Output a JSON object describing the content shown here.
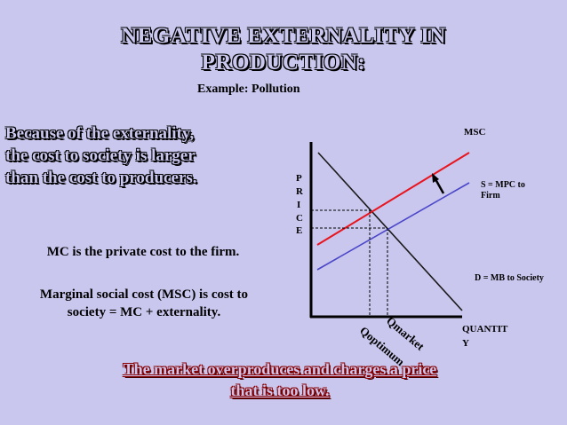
{
  "slide": {
    "title_line1": "NEGATIVE EXTERNALITY IN",
    "title_line2": "PRODUCTION:",
    "example": "Example:  Pollution",
    "cost_text_line1": "Because of the externality,",
    "cost_text_line2": "the cost to society is larger",
    "cost_text_line3": "than the cost to producers.",
    "mc_text": "MC is the private cost to the firm.",
    "msc_text": "Marginal social cost (MSC) is cost to society = MC + externality.",
    "conclusion_line1": "The market overproduces and charges a price",
    "conclusion_line2": "that is too low."
  },
  "diagram": {
    "y_axis_label_letters": [
      "P",
      "R",
      "I",
      "C",
      "E"
    ],
    "x_axis_label_line1": "QUANTIT",
    "x_axis_label_line2": "Y",
    "msc_label": "MSC",
    "supply_label_line1": "S = MPC to",
    "supply_label_line2": "Firm",
    "demand_label": "D = MB to Society",
    "q_market_label": "Qmarket",
    "q_optimum_label": "Qoptimum",
    "colors": {
      "msc_line": "#e8141e",
      "supply_line": "#4a46c8",
      "demand_line": "#1a1a1a",
      "background": "#c9c7ee"
    }
  }
}
